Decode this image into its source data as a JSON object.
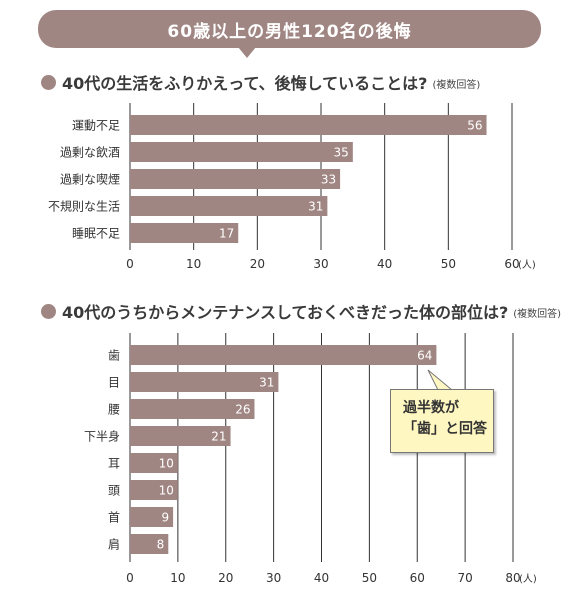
{
  "banner": {
    "title": "60歳以上の男性120名の後悔"
  },
  "q1": {
    "question": "40代の生活をふりかえって、後悔していることは?",
    "note": "(複数回答)"
  },
  "q2": {
    "question": "40代のうちからメンテナンスしておくべきだった体の部位は?",
    "note": "(複数回答)"
  },
  "callout": {
    "line1": "過半数が",
    "line2": "「歯」と回答"
  },
  "colors": {
    "bar": "#a08683",
    "accent": "#a08683",
    "callout_bg": "#fff7c2"
  },
  "chart_data": [
    {
      "type": "bar",
      "orientation": "horizontal",
      "categories": [
        "運動不足",
        "過剰な飲酒",
        "過剰な喫煙",
        "不規則な生活",
        "睡眠不足"
      ],
      "values": [
        56,
        35,
        33,
        31,
        17
      ],
      "xlim": [
        0,
        60
      ],
      "ticks": [
        0,
        10,
        20,
        30,
        40,
        50,
        60
      ],
      "unit": "(人)",
      "grid": true
    },
    {
      "type": "bar",
      "orientation": "horizontal",
      "categories": [
        "歯",
        "目",
        "腰",
        "下半身",
        "耳",
        "頭",
        "首",
        "肩"
      ],
      "values": [
        64,
        31,
        26,
        21,
        10,
        10,
        9,
        8
      ],
      "xlim": [
        0,
        80
      ],
      "ticks": [
        0,
        10,
        20,
        30,
        40,
        50,
        60,
        70,
        80
      ],
      "unit": "(人)",
      "grid": true
    }
  ]
}
